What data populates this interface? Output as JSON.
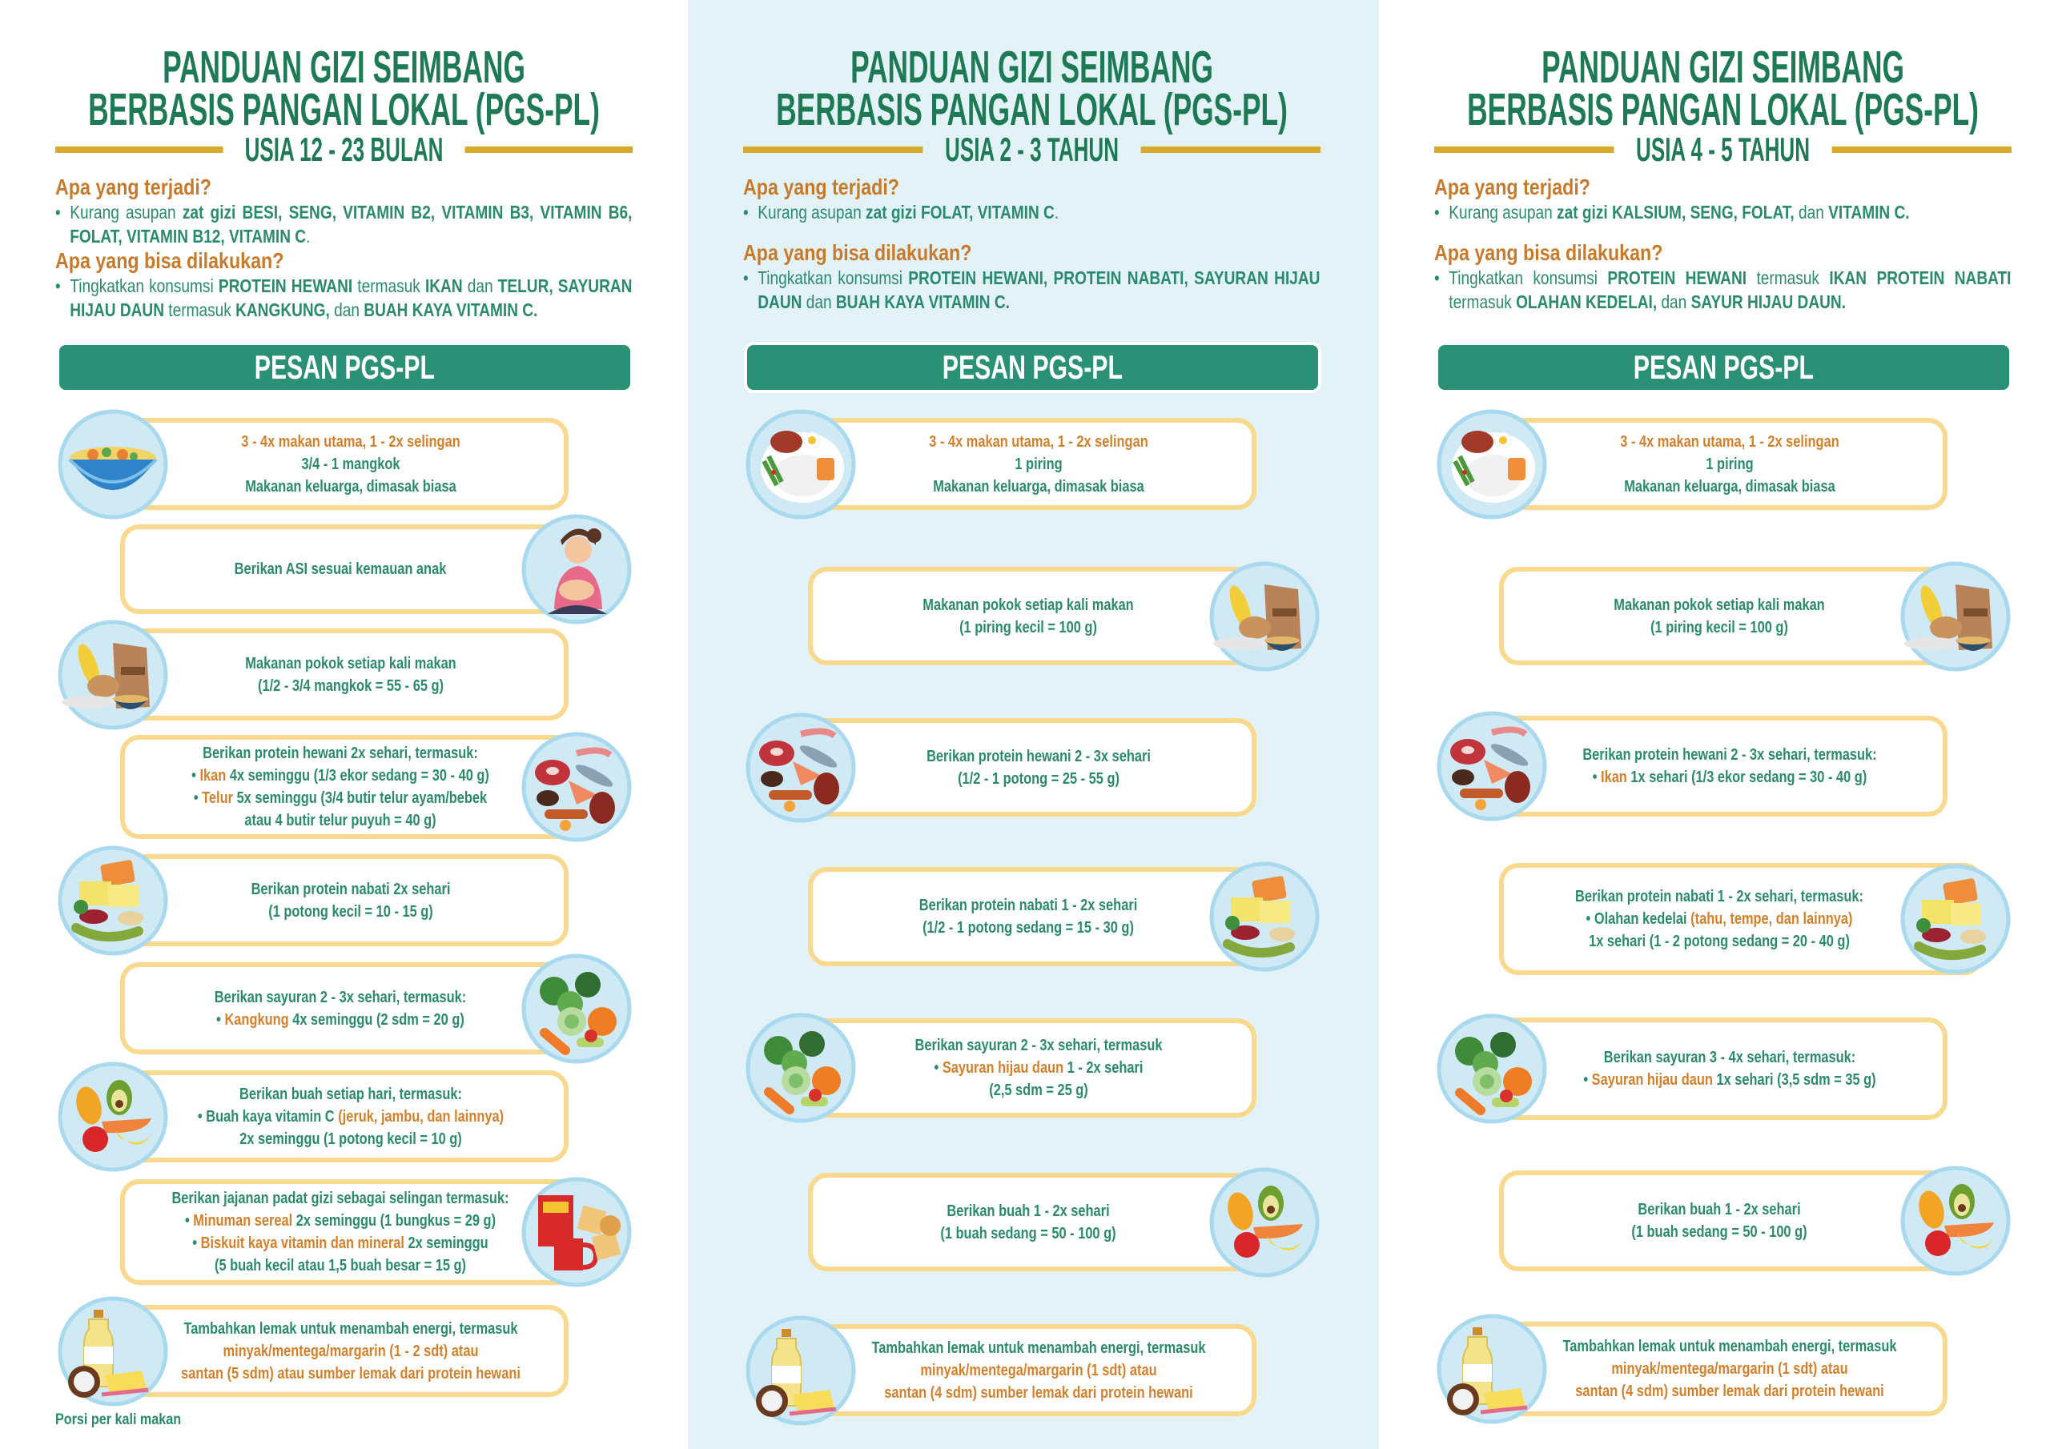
{
  "colors": {
    "title_green": "#1e7a55",
    "text_green": "#2a8a6c",
    "orange": "#d4802a",
    "question_orange": "#c87a2b",
    "gold": "#d9a92b",
    "card_border": "#f9d98e",
    "pesan_bg": "#2a9176",
    "middle_bg": "#e3f2f6"
  },
  "columns": [
    {
      "title_line1": "PANDUAN GIZI SEIMBANG",
      "title_line2": "BERBASIS PANGAN LOKAL (PGS-PL)",
      "age": "USIA 12 - 23 BULAN",
      "q1": "Apa yang terjadi?",
      "a1": [
        {
          "t": "Kurang asupan "
        },
        {
          "t": "zat gizi BESI, SENG, VITAMIN B2, VITAMIN B3, VITAMIN B6, FOLAT, VITAMIN B12, VITAMIN C",
          "b": true
        },
        {
          "t": "."
        }
      ],
      "q2": "Apa yang bisa dilakukan?",
      "a2": [
        {
          "t": "Tingkatkan konsumsi "
        },
        {
          "t": "PROTEIN HEWANI",
          "b": true
        },
        {
          "t": " termasuk "
        },
        {
          "t": "IKAN",
          "b": true
        },
        {
          "t": " dan "
        },
        {
          "t": "TELUR, SAYURAN HIJAU DAUN",
          "b": true
        },
        {
          "t": " termasuk "
        },
        {
          "t": "KANGKUNG,",
          "b": true
        },
        {
          "t": " dan "
        },
        {
          "t": "BUAH KAYA VITAMIN C.",
          "b": true
        }
      ],
      "pesan": "PESAN PGS-PL",
      "footer": "Porsi per kali makan",
      "cards": [
        {
          "icon": "bowl",
          "side": "L",
          "lines": [
            [
              {
                "t": "3 - 4x makan utama, 1 - 2x selingan",
                "o": true
              }
            ],
            [
              {
                "t": "3/4 - 1 mangkok"
              }
            ],
            [
              {
                "t": "Makanan keluarga, dimasak biasa"
              }
            ]
          ]
        },
        {
          "icon": "breastfeeding-mother",
          "side": "R",
          "lines": [
            [
              {
                "t": "Berikan ASI sesuai kemauan anak"
              }
            ]
          ]
        },
        {
          "icon": "staple-food",
          "side": "L",
          "lines": [
            [
              {
                "t": "Makanan pokok setiap kali makan"
              }
            ],
            [
              {
                "t": "(1/2 - 3/4 mangkok = 55 - 65 g)"
              }
            ]
          ]
        },
        {
          "icon": "animal-protein",
          "side": "R",
          "lines": [
            [
              {
                "t": "Berikan protein hewani 2x sehari, termasuk:"
              }
            ],
            [
              {
                "t": "• "
              },
              {
                "t": "Ikan",
                "o": true
              },
              {
                "t": " 4x seminggu (1/3 ekor sedang = 30 - 40 g)"
              }
            ],
            [
              {
                "t": "• "
              },
              {
                "t": "Telur",
                "o": true
              },
              {
                "t": " 5x seminggu (3/4 butir telur ayam/bebek"
              }
            ],
            [
              {
                "t": "atau 4 butir telur puyuh = 40 g)"
              }
            ]
          ]
        },
        {
          "icon": "plant-protein",
          "side": "L",
          "lines": [
            [
              {
                "t": "Berikan protein nabati 2x sehari"
              }
            ],
            [
              {
                "t": "(1 potong kecil = 10 - 15 g)"
              }
            ]
          ]
        },
        {
          "icon": "vegetables",
          "side": "R",
          "lines": [
            [
              {
                "t": "Berikan sayuran 2 - 3x sehari, termasuk:"
              }
            ],
            [
              {
                "t": "• "
              },
              {
                "t": "Kangkung",
                "o": true
              },
              {
                "t": " 4x seminggu (2 sdm = 20 g)"
              }
            ]
          ]
        },
        {
          "icon": "fruits",
          "side": "L",
          "lines": [
            [
              {
                "t": "Berikan buah setiap hari, termasuk:"
              }
            ],
            [
              {
                "t": "• Buah kaya vitamin C "
              },
              {
                "t": "(jeruk, jambu, dan lainnya)",
                "o": true
              }
            ],
            [
              {
                "t": "2x seminggu (1 potong kecil = 10 g)"
              }
            ]
          ]
        },
        {
          "icon": "snacks",
          "side": "R",
          "lines": [
            [
              {
                "t": "Berikan jajanan padat gizi sebagai selingan termasuk:"
              }
            ],
            [
              {
                "t": "• "
              },
              {
                "t": "Minuman sereal",
                "o": true
              },
              {
                "t": " 2x seminggu (1 bungkus = 29 g)"
              }
            ],
            [
              {
                "t": "• "
              },
              {
                "t": "Biskuit kaya vitamin dan mineral",
                "o": true
              },
              {
                "t": " 2x seminggu"
              }
            ],
            [
              {
                "t": "(5 buah kecil atau 1,5 buah besar = 15 g)"
              }
            ]
          ]
        },
        {
          "icon": "fats",
          "side": "L",
          "lines": [
            [
              {
                "t": "Tambahkan lemak untuk menambah energi, termasuk"
              }
            ],
            [
              {
                "t": "minyak/mentega/margarin (1 - 2 sdt) atau",
                "o": true
              }
            ],
            [
              {
                "t": "santan (5 sdm) atau sumber lemak dari protein hewani",
                "o": true
              }
            ]
          ]
        }
      ]
    },
    {
      "title_line1": "PANDUAN GIZI SEIMBANG",
      "title_line2": "BERBASIS PANGAN LOKAL (PGS-PL)",
      "age": "USIA 2 - 3 TAHUN",
      "q1": "Apa yang terjadi?",
      "a1": [
        {
          "t": "Kurang asupan "
        },
        {
          "t": "zat gizi FOLAT, VITAMIN C",
          "b": true
        },
        {
          "t": "."
        }
      ],
      "q2": "Apa yang bisa dilakukan?",
      "a2": [
        {
          "t": "Tingkatkan konsumsi "
        },
        {
          "t": "PROTEIN HEWANI, PROTEIN NABATI, SAYURAN HIJAU DAUN",
          "b": true
        },
        {
          "t": " dan "
        },
        {
          "t": "BUAH KAYA VITAMIN C.",
          "b": true
        }
      ],
      "pesan": "PESAN PGS-PL",
      "cards": [
        {
          "icon": "meal-plate",
          "side": "L",
          "lines": [
            [
              {
                "t": "3 - 4x makan utama, 1 - 2x selingan",
                "o": true
              }
            ],
            [
              {
                "t": "1 piring"
              }
            ],
            [
              {
                "t": "Makanan keluarga, dimasak biasa"
              }
            ]
          ]
        },
        {
          "icon": "staple-food",
          "side": "R",
          "lines": [
            [
              {
                "t": "Makanan pokok setiap kali makan"
              }
            ],
            [
              {
                "t": "(1 piring kecil = 100 g)"
              }
            ]
          ]
        },
        {
          "icon": "animal-protein",
          "side": "L",
          "lines": [
            [
              {
                "t": "Berikan protein hewani 2 - 3x sehari"
              }
            ],
            [
              {
                "t": "(1/2 - 1 potong = 25 - 55 g)"
              }
            ]
          ]
        },
        {
          "icon": "plant-protein",
          "side": "R",
          "lines": [
            [
              {
                "t": "Berikan protein nabati 1 - 2x sehari"
              }
            ],
            [
              {
                "t": "(1/2 - 1 potong sedang = 15 - 30 g)"
              }
            ]
          ]
        },
        {
          "icon": "vegetables",
          "side": "L",
          "lines": [
            [
              {
                "t": "Berikan sayuran 2 - 3x sehari, termasuk"
              }
            ],
            [
              {
                "t": "• "
              },
              {
                "t": "Sayuran hijau daun",
                "o": true
              },
              {
                "t": " 1 - 2x sehari"
              }
            ],
            [
              {
                "t": "(2,5 sdm = 25 g)"
              }
            ]
          ]
        },
        {
          "icon": "fruits",
          "side": "R",
          "lines": [
            [
              {
                "t": "Berikan buah 1 - 2x sehari"
              }
            ],
            [
              {
                "t": "(1 buah sedang = 50 - 100 g)"
              }
            ]
          ]
        },
        {
          "icon": "fats",
          "side": "L",
          "lines": [
            [
              {
                "t": "Tambahkan lemak untuk menambah energi, termasuk"
              }
            ],
            [
              {
                "t": "minyak/mentega/margarin (1 sdt) atau",
                "o": true
              }
            ],
            [
              {
                "t": "santan (4 sdm) sumber lemak dari protein hewani",
                "o": true
              }
            ]
          ]
        }
      ]
    },
    {
      "title_line1": "PANDUAN GIZI SEIMBANG",
      "title_line2": "BERBASIS PANGAN LOKAL (PGS-PL)",
      "age": "USIA 4 - 5 TAHUN",
      "q1": "Apa yang terjadi?",
      "a1": [
        {
          "t": "Kurang asupan "
        },
        {
          "t": "zat gizi KALSIUM, SENG, FOLAT,",
          "b": true
        },
        {
          "t": " dan "
        },
        {
          "t": "VITAMIN C.",
          "b": true
        }
      ],
      "q2": "Apa yang bisa dilakukan?",
      "a2": [
        {
          "t": "Tingkatkan konsumsi "
        },
        {
          "t": "PROTEIN HEWANI",
          "b": true
        },
        {
          "t": " termasuk "
        },
        {
          "t": "IKAN PROTEIN NABATI",
          "b": true
        },
        {
          "t": " termasuk "
        },
        {
          "t": "OLAHAN KEDELAI,",
          "b": true
        },
        {
          "t": " dan "
        },
        {
          "t": "SAYUR HIJAU DAUN.",
          "b": true
        }
      ],
      "pesan": "PESAN PGS-PL",
      "cards": [
        {
          "icon": "meal-plate",
          "side": "L",
          "lines": [
            [
              {
                "t": "3 - 4x makan utama, 1 - 2x selingan",
                "o": true
              }
            ],
            [
              {
                "t": "1 piring"
              }
            ],
            [
              {
                "t": "Makanan keluarga, dimasak biasa"
              }
            ]
          ]
        },
        {
          "icon": "staple-food",
          "side": "R",
          "lines": [
            [
              {
                "t": "Makanan pokok setiap kali makan"
              }
            ],
            [
              {
                "t": "(1 piring kecil = 100 g)"
              }
            ]
          ]
        },
        {
          "icon": "animal-protein",
          "side": "L",
          "lines": [
            [
              {
                "t": "Berikan protein hewani 2 - 3x sehari, termasuk:"
              }
            ],
            [
              {
                "t": "• "
              },
              {
                "t": "Ikan",
                "o": true
              },
              {
                "t": " 1x sehari (1/3 ekor sedang = 30 - 40 g)"
              }
            ]
          ]
        },
        {
          "icon": "plant-protein",
          "side": "R",
          "lines": [
            [
              {
                "t": "Berikan protein nabati 1 - 2x sehari, termasuk:"
              }
            ],
            [
              {
                "t": "• Olahan kedelai "
              },
              {
                "t": "(tahu, tempe, dan lainnya)",
                "o": true
              }
            ],
            [
              {
                "t": "1x sehari (1 - 2 potong sedang = 20 - 40 g)"
              }
            ]
          ]
        },
        {
          "icon": "vegetables",
          "side": "L",
          "lines": [
            [
              {
                "t": "Berikan sayuran 3 - 4x sehari, termasuk:"
              }
            ],
            [
              {
                "t": "• "
              },
              {
                "t": "Sayuran hijau daun",
                "o": true
              },
              {
                "t": " 1x sehari (3,5 sdm = 35 g)"
              }
            ]
          ]
        },
        {
          "icon": "fruits",
          "side": "R",
          "lines": [
            [
              {
                "t": "Berikan buah 1 - 2x sehari"
              }
            ],
            [
              {
                "t": "(1 buah sedang = 50 - 100 g)"
              }
            ]
          ]
        },
        {
          "icon": "fats",
          "side": "L",
          "lines": [
            [
              {
                "t": "Tambahkan lemak untuk menambah energi, termasuk"
              }
            ],
            [
              {
                "t": "minyak/mentega/margarin (1 sdt) atau",
                "o": true
              }
            ],
            [
              {
                "t": "santan (4 sdm) sumber lemak dari protein hewani",
                "o": true
              }
            ]
          ]
        }
      ]
    }
  ]
}
